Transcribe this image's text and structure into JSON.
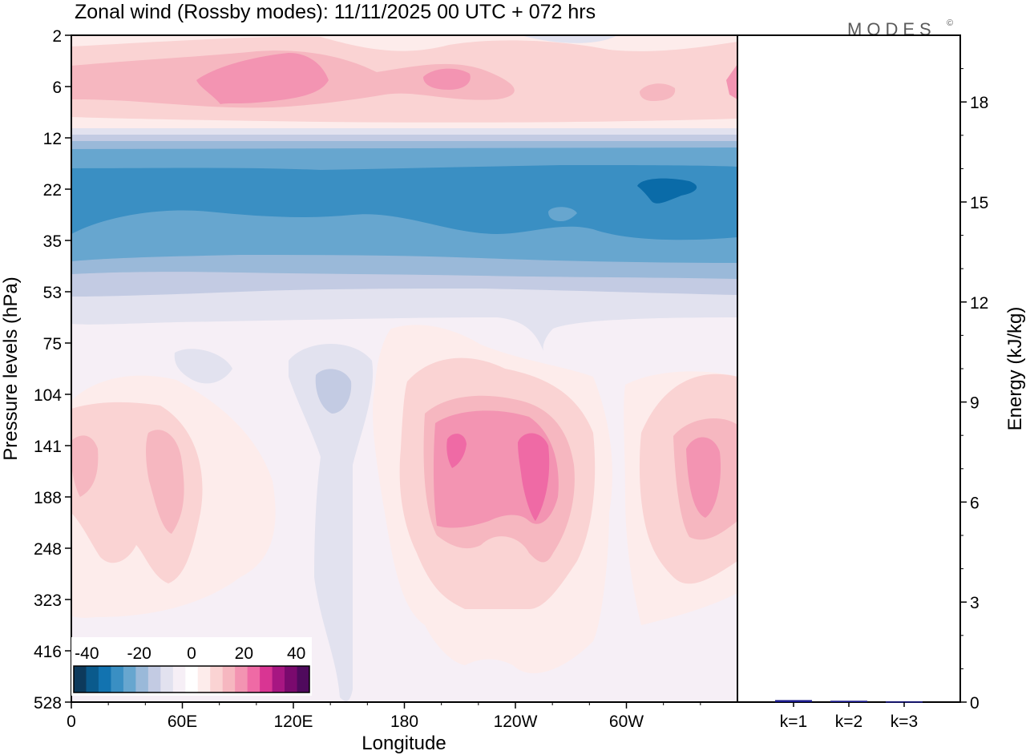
{
  "chart_data": {
    "type": "heatmap",
    "title": "Zonal wind (Rossby modes):  11/11/2025  00 UTC  + 072 hrs",
    "logo": "MODES",
    "logo_mark": "©",
    "xlabel": "Longitude",
    "ylabel": "Pressure levels (hPa)",
    "x_ticks": [
      "0",
      "60E",
      "120E",
      "180",
      "120W",
      "60W"
    ],
    "y_ticks": [
      "2",
      "6",
      "12",
      "22",
      "35",
      "53",
      "75",
      "104",
      "141",
      "188",
      "248",
      "323",
      "416",
      "528"
    ],
    "colorbar": {
      "tick_labels": [
        "-40",
        "-20",
        "0",
        "20",
        "40"
      ],
      "levels": [
        -45,
        -40,
        -35,
        -30,
        -25,
        -20,
        -15,
        -10,
        -5,
        0,
        5,
        10,
        15,
        20,
        25,
        30,
        35,
        40,
        45
      ],
      "colors": [
        "#0d3a5c",
        "#0a5a8c",
        "#1273b0",
        "#3a8fc3",
        "#67a6cf",
        "#9ab9d9",
        "#c3cbe3",
        "#e2e2ef",
        "#f6eff6",
        "#ffffff",
        "#fdeceb",
        "#fad3d3",
        "#f6b7c0",
        "#f394b2",
        "#ef6aa5",
        "#d93593",
        "#a71682",
        "#7a0a6e",
        "#4f0a5d"
      ]
    },
    "energy_panel": {
      "ylabel": "Energy (kJ/kg)",
      "ylim": [
        0,
        20
      ],
      "y_ticks": [
        "0",
        "3",
        "6",
        "9",
        "12",
        "15",
        "18"
      ],
      "categories": [
        "k=1",
        "k=2",
        "k=3"
      ],
      "values": [
        0.06,
        0.04,
        0.02
      ],
      "bar_color": "#1a1a8c"
    }
  }
}
